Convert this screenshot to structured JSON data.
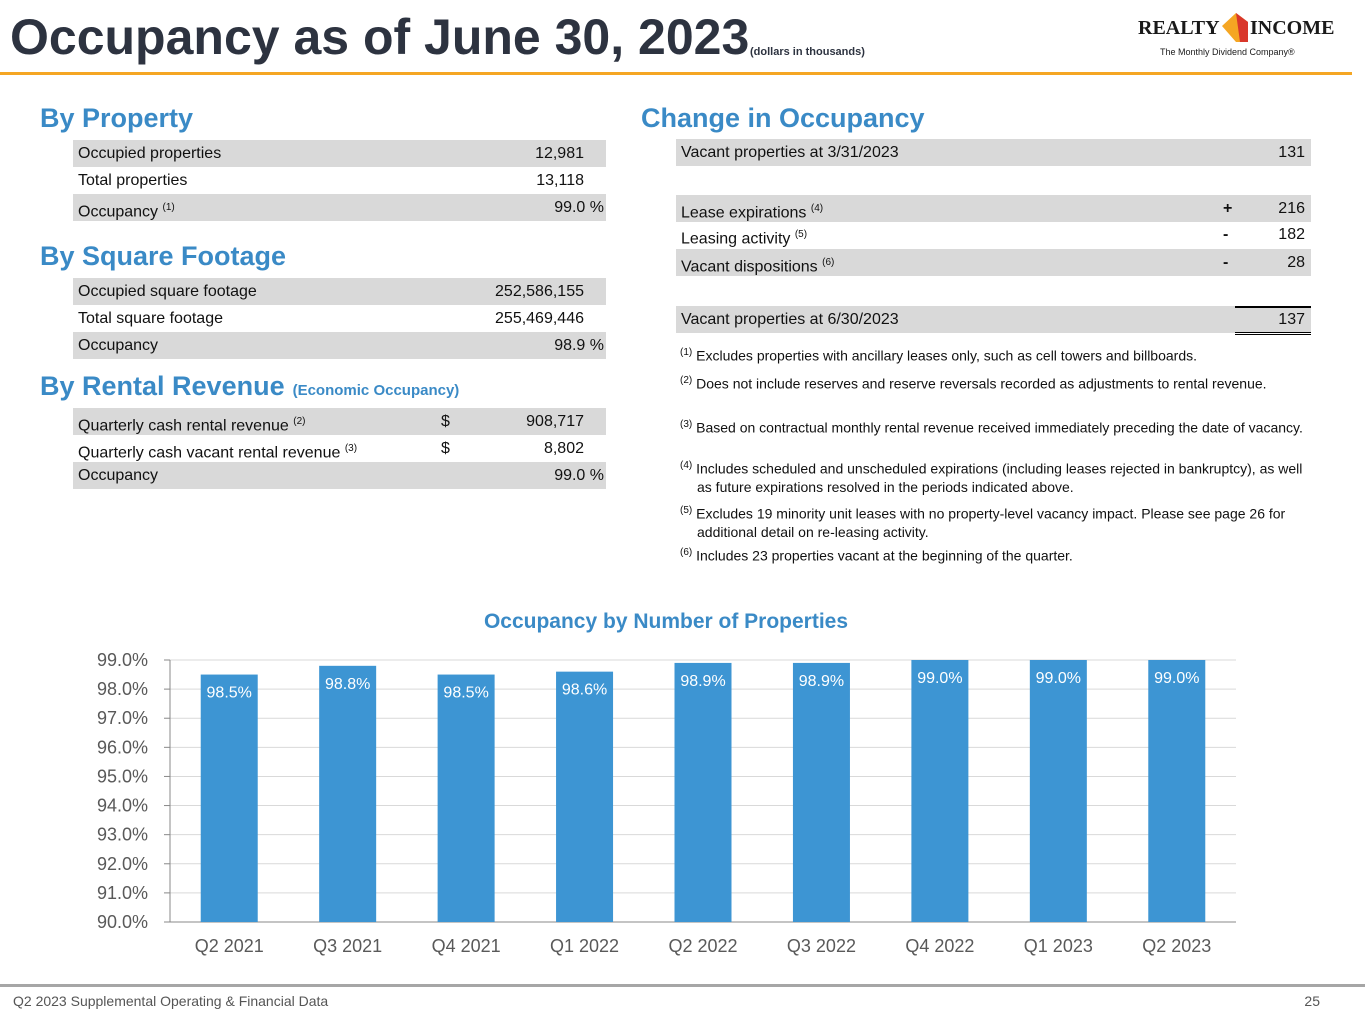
{
  "header": {
    "title": "Occupancy as of June 30, 2023",
    "subtitle": "(dollars in thousands)",
    "logo_left": "REALTY",
    "logo_right": "INCOME",
    "tagline": "The Monthly Dividend Company®"
  },
  "by_property": {
    "heading": "By Property",
    "rows": [
      {
        "label": "Occupied properties",
        "value": "12,981"
      },
      {
        "label": "Total properties",
        "value": "13,118"
      },
      {
        "label": "Occupancy",
        "note": "(1)",
        "value": "99.0 %"
      }
    ]
  },
  "by_square_footage": {
    "heading": "By Square Footage",
    "rows": [
      {
        "label": "Occupied square footage",
        "value": "252,586,155"
      },
      {
        "label": "Total square footage",
        "value": "255,469,446"
      },
      {
        "label": "Occupancy",
        "value": "98.9 %"
      }
    ]
  },
  "by_rental_revenue": {
    "heading": "By Rental Revenue",
    "subheading": "(Economic Occupancy)",
    "rows": [
      {
        "label": "Quarterly cash rental revenue",
        "note": "(2)",
        "currency": "$",
        "value": "908,717"
      },
      {
        "label": "Quarterly cash vacant rental revenue",
        "note": "(3)",
        "currency": "$",
        "value": "8,802"
      },
      {
        "label": "Occupancy",
        "value": "99.0 %"
      }
    ]
  },
  "change_in_occupancy": {
    "heading": "Change in Occupancy",
    "rows": [
      {
        "label": "Vacant properties at 3/31/2023",
        "value": "131"
      },
      {
        "label": "Lease expirations",
        "note": "(4)",
        "sign": "+",
        "value": "216"
      },
      {
        "label": "Leasing activity",
        "note": "(5)",
        "sign": "-",
        "value": "182"
      },
      {
        "label": "Vacant dispositions",
        "note": "(6)",
        "sign": "-",
        "value": "28"
      },
      {
        "label": "Vacant properties at 6/30/2023",
        "value": "137"
      }
    ]
  },
  "footnotes": [
    {
      "marker": "(1)",
      "text": "Excludes properties with ancillary leases only, such as cell towers and billboards."
    },
    {
      "marker": "(2)",
      "text": "Does not include reserves and reserve reversals recorded as adjustments to rental revenue."
    },
    {
      "marker": "(3)",
      "text": "Based on contractual monthly rental revenue received immediately preceding the date of vacancy."
    },
    {
      "marker": "(4)",
      "text": "Includes scheduled and unscheduled expirations (including leases rejected in bankruptcy), as well as future expirations resolved in the periods indicated above."
    },
    {
      "marker": "(5)",
      "text": "Excludes 19 minority unit leases with no property-level vacancy impact. Please see page 26 for additional detail on re-leasing activity."
    },
    {
      "marker": "(6)",
      "text": "Includes 23 properties vacant at the beginning of the quarter."
    }
  ],
  "chart_data": {
    "type": "bar",
    "title": "Occupancy by Number of Properties",
    "categories": [
      "Q2 2021",
      "Q3 2021",
      "Q4 2021",
      "Q1 2022",
      "Q2 2022",
      "Q3 2022",
      "Q4 2022",
      "Q1 2023",
      "Q2 2023"
    ],
    "values": [
      98.5,
      98.8,
      98.5,
      98.6,
      98.9,
      98.9,
      99.0,
      99.0,
      99.0
    ],
    "value_labels": [
      "98.5%",
      "98.8%",
      "98.5%",
      "98.6%",
      "98.9%",
      "98.9%",
      "99.0%",
      "99.0%",
      "99.0%"
    ],
    "color": "#3d95d3",
    "ylim": [
      90,
      99
    ],
    "yticks": [
      {
        "value": 90,
        "label": "90.0%"
      },
      {
        "value": 91,
        "label": "91.0%"
      },
      {
        "value": 92,
        "label": "92.0%"
      },
      {
        "value": 93,
        "label": "93.0%"
      },
      {
        "value": 94,
        "label": "94.0%"
      },
      {
        "value": 95,
        "label": "95.0%"
      },
      {
        "value": 96,
        "label": "96.0%"
      },
      {
        "value": 97,
        "label": "97.0%"
      },
      {
        "value": 98,
        "label": "98.0%"
      },
      {
        "value": 99,
        "label": "99.0%"
      }
    ],
    "grid": true
  },
  "footer": {
    "text": "Q2 2023 Supplemental Operating & Financial Data",
    "page": "25"
  }
}
